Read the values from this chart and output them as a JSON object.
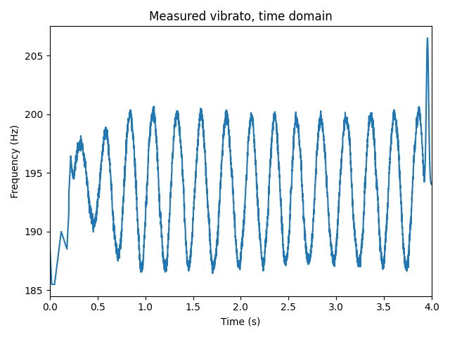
{
  "title": "Measured vibrato, time domain",
  "xlabel": "Time (s)",
  "ylabel": "Frequency (Hz)",
  "line_color": "#1f77b4",
  "line_width": 1.5,
  "figsize": [
    6.4,
    4.8
  ],
  "dpi": 100,
  "xlim": [
    0.0,
    4.0
  ],
  "ylim": [
    184.5,
    207.5
  ],
  "yticks": [
    185,
    190,
    195,
    200,
    205
  ],
  "xticks": [
    0.0,
    0.5,
    1.0,
    1.5,
    2.0,
    2.5,
    3.0,
    3.5,
    4.0
  ]
}
